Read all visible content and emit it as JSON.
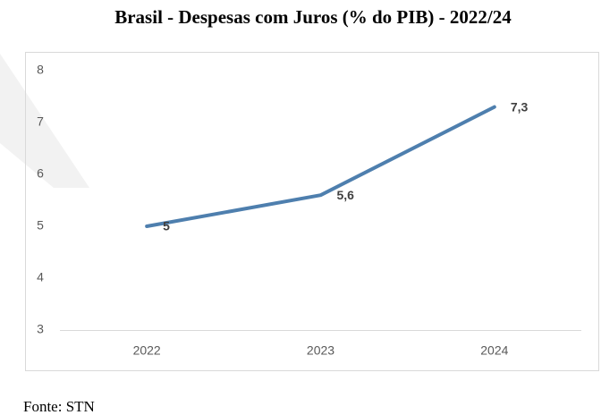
{
  "chart_data": {
    "type": "line",
    "title": "Brasil - Despesas com Juros (% do PIB) - 2022/24",
    "categories": [
      "2022",
      "2023",
      "2024"
    ],
    "values": [
      5,
      5.6,
      7.3
    ],
    "value_labels": [
      "5",
      "5,6",
      "7,3"
    ],
    "color": "#4e7fae",
    "ylim": [
      3,
      8
    ],
    "yticks": [
      3,
      4,
      5,
      6,
      7,
      8
    ],
    "grid": false,
    "source": "Fonte: STN"
  }
}
